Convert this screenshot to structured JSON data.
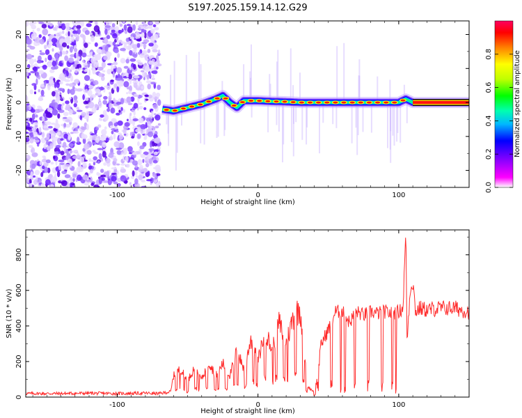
{
  "title": "S197.2025.159.14.12.G29",
  "colorbar": {
    "label": "Normalized spectral amplitude",
    "ticks": [
      "0.0",
      "0.2",
      "0.4",
      "0.6",
      "0.8"
    ],
    "tick_values": [
      0.0,
      0.2,
      0.4,
      0.6,
      0.8
    ],
    "range": [
      0,
      1
    ],
    "colors": [
      "#ffffff",
      "#ff00ff",
      "#6000ff",
      "#0000ff",
      "#00b8ff",
      "#00ffb0",
      "#00ff00",
      "#c0ff00",
      "#ffff00",
      "#ff8000",
      "#ff0000"
    ]
  },
  "chart_data": [
    {
      "type": "heatmap",
      "xlabel": "Height of straight line (km)",
      "ylabel": "Frequency (Hz)",
      "xlim": [
        -165,
        150
      ],
      "ylim": [
        -25,
        24
      ],
      "xticks": [
        -100,
        0,
        100
      ],
      "xtick_labels": [
        "-100",
        "0",
        "100"
      ],
      "yticks": [
        -20,
        -10,
        0,
        10,
        20
      ],
      "ytick_labels": [
        "-20",
        "-10",
        "0",
        "10",
        "20"
      ],
      "grid": false,
      "noise_region_x": [
        -165,
        -70
      ],
      "ridge": {
        "x": [
          -68,
          -60,
          -50,
          -40,
          -30,
          -25,
          -20,
          -15,
          -10,
          0,
          10,
          20,
          30,
          40,
          50,
          60,
          70,
          80,
          90,
          100,
          105,
          110,
          150
        ],
        "y": [
          -2,
          -2.5,
          -1.5,
          -0.5,
          1,
          2,
          0,
          -1.5,
          0.5,
          0.5,
          0.3,
          0.2,
          0,
          0,
          0,
          0,
          0,
          0,
          0,
          0,
          1,
          0,
          0
        ]
      }
    },
    {
      "type": "line",
      "xlabel": "Height of straight line (km)",
      "ylabel": "SNR (10 * v/v)",
      "xlim": [
        -165,
        150
      ],
      "ylim": [
        0,
        940
      ],
      "xticks": [
        -100,
        0,
        100
      ],
      "xtick_labels": [
        "-100",
        "0",
        "100"
      ],
      "yticks": [
        0,
        200,
        400,
        600,
        800
      ],
      "ytick_labels": [
        "0",
        "200",
        "400",
        "600",
        "800"
      ],
      "grid": false,
      "series_color": "#ff2a2a",
      "x": [
        -165,
        -140,
        -120,
        -100,
        -80,
        -70,
        -62,
        -60,
        -55,
        -50,
        -45,
        -40,
        -35,
        -30,
        -25,
        -20,
        -15,
        -10,
        -5,
        0,
        5,
        10,
        15,
        20,
        25,
        30,
        35,
        40,
        42,
        45,
        50,
        55,
        60,
        65,
        70,
        75,
        80,
        85,
        90,
        95,
        100,
        103,
        105,
        106,
        108,
        110,
        112,
        115,
        120,
        130,
        140,
        150
      ],
      "y": [
        20,
        20,
        22,
        20,
        22,
        20,
        30,
        120,
        160,
        90,
        170,
        100,
        200,
        120,
        190,
        120,
        260,
        160,
        330,
        200,
        380,
        260,
        420,
        300,
        450,
        500,
        60,
        30,
        100,
        300,
        380,
        480,
        480,
        420,
        480,
        460,
        480,
        470,
        480,
        470,
        480,
        500,
        930,
        300,
        600,
        650,
        480,
        500,
        490,
        500,
        500,
        480
      ]
    }
  ]
}
